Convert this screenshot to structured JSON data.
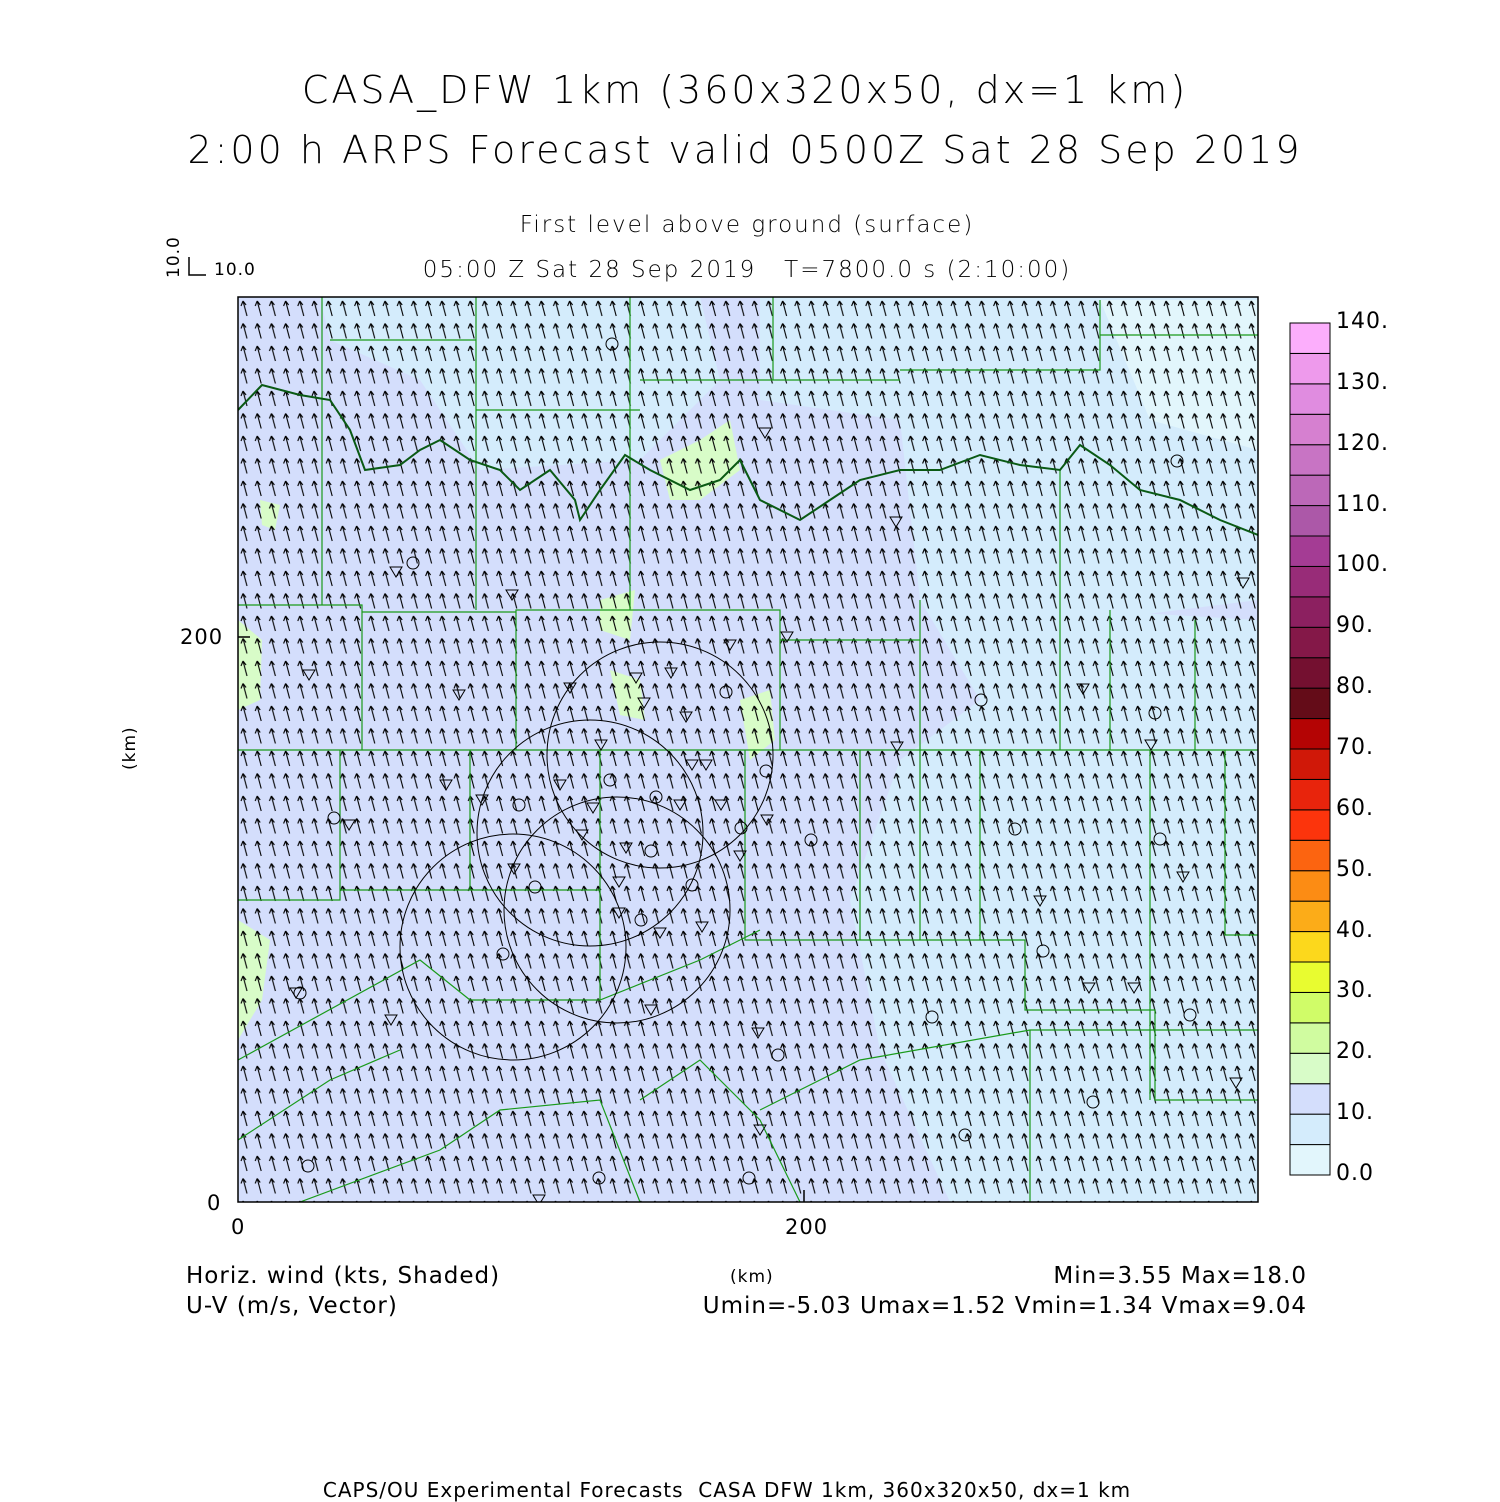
{
  "title": {
    "line1": "CASA_DFW 1km (360x320x50, dx=1 km)",
    "line2": "2:00 h ARPS Forecast valid 0500Z Sat 28 Sep 2019"
  },
  "subtitle": {
    "line1": "First level above ground (surface)",
    "line2": "05:00 Z Sat 28 Sep 2019   T=7800.0 s (2:10:00)"
  },
  "vector_key": {
    "u_label": "10.0",
    "v_label": "10.0"
  },
  "axes": {
    "xlabel": "(km)",
    "ylabel": "(km)",
    "xticks": [
      "0",
      "200"
    ],
    "yticks": [
      "0",
      "200"
    ],
    "xlim": [
      0,
      360
    ],
    "ylim": [
      0,
      320
    ]
  },
  "footer": {
    "left1": "Horiz. wind (kts, Shaded)",
    "left2": "U-V (m/s, Vector)",
    "center": "(km)",
    "right1": "Min=3.55 Max=18.0",
    "right2": "Umin=-5.03 Umax=1.52 Vmin=1.34 Vmax=9.04",
    "credit": "CAPS/OU Experimental Forecasts  CASA DFW 1km, 360x320x50, dx=1 km"
  },
  "colorbar": {
    "labels": [
      "0.0",
      "10.",
      "20.",
      "30.",
      "40.",
      "50.",
      "60.",
      "70.",
      "80.",
      "90.",
      "100.",
      "110.",
      "120.",
      "130.",
      "140."
    ],
    "colors": [
      "#e2f6fc",
      "#d4ecfc",
      "#d4defc",
      "#d8fcc8",
      "#d0fca0",
      "#d0fc68",
      "#e8fc30",
      "#fcd81c",
      "#fcac18",
      "#fc8c14",
      "#fc6410",
      "#fc340c",
      "#e8240c",
      "#d01808",
      "#b40404",
      "#640c18",
      "#741030",
      "#841848",
      "#8c2060",
      "#982c78",
      "#a43c94",
      "#ac58a8",
      "#bc68b8",
      "#c874c4",
      "#d680d0",
      "#e08ce0",
      "#ee9aec",
      "#fcaefc"
    ]
  }
}
